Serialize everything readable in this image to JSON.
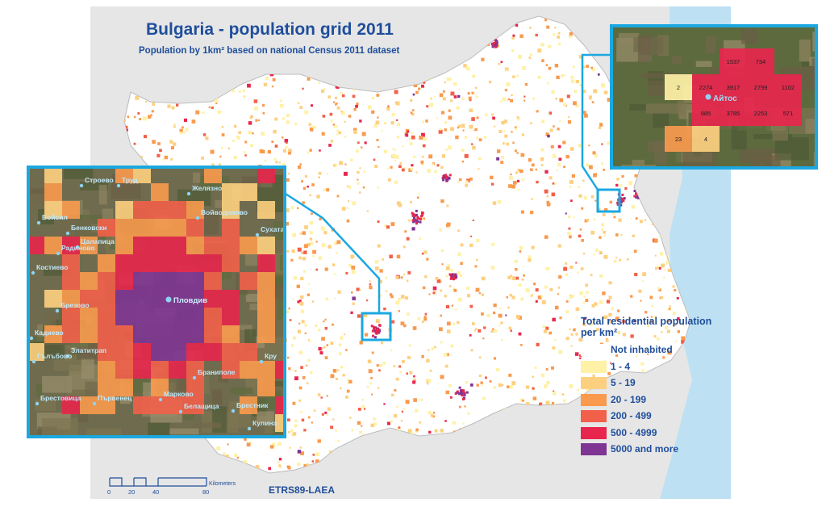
{
  "map": {
    "title": "Bulgaria - population grid 2011",
    "subtitle": "Population by 1km² based on national Census 2011 dataset",
    "crs": "ETRS89-LAEA"
  },
  "legend": {
    "title_line1": "Total residential population",
    "title_line2": "per km²",
    "classes": [
      {
        "label": "Not inhabited",
        "color": "#ffffff"
      },
      {
        "label": "1 - 4",
        "color": "#fff1a6"
      },
      {
        "label": "5 - 19",
        "color": "#fdd080"
      },
      {
        "label": "20 - 199",
        "color": "#f99a4e"
      },
      {
        "label": "200 - 499",
        "color": "#f26049"
      },
      {
        "label": "500 - 4999",
        "color": "#e8264d"
      },
      {
        "label": "5000 and more",
        "color": "#7e3594"
      }
    ]
  },
  "scalebar": {
    "ticks": [
      "0",
      "20",
      "40",
      "80"
    ],
    "unit": "Kilometers"
  },
  "inset_left": {
    "city": "Пловдив",
    "places": [
      "Строево",
      "Труд",
      "Желязно",
      "Войводиново",
      "Войсил",
      "Бенковски",
      "Цалапица",
      "Радиново",
      "Сухата",
      "Костиево",
      "Брезово",
      "Кадиево",
      "Златитрап",
      "Гълъбово",
      "Кру",
      "Браниполе",
      "Брестовица",
      "Първенец",
      "Марково",
      "Белащица",
      "Брестник",
      "Кулина"
    ]
  },
  "inset_right": {
    "city": "Айтос",
    "cells": [
      "1537",
      "734",
      "2",
      "2274",
      "3917",
      "2799",
      "1102",
      "985",
      "3785",
      "2253",
      "571",
      "23",
      "4"
    ]
  },
  "colors": {
    "accent": "#1ba8e0",
    "text": "#1f4e9b",
    "sea": "#bde1f3",
    "land_outside": "#e4e4e4"
  }
}
